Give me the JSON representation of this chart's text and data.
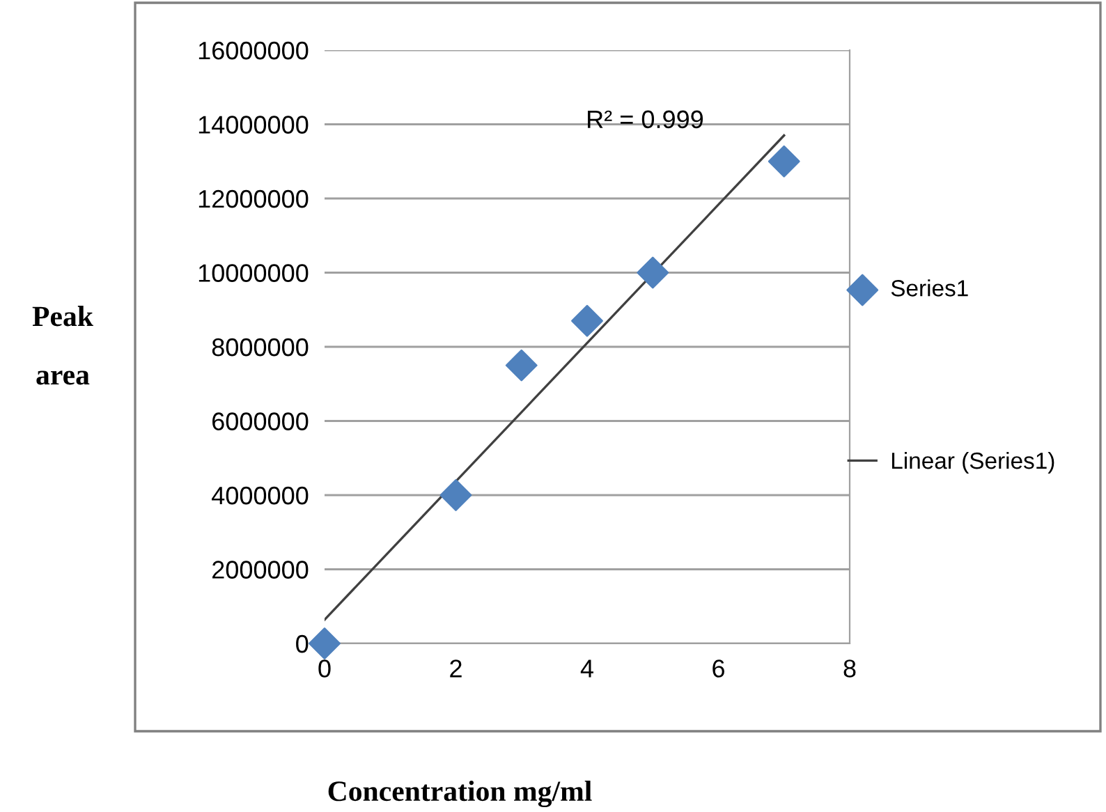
{
  "chart_data": {
    "type": "scatter",
    "xlabel": "Concentration mg/ml",
    "ylabel": "Peak\narea",
    "series": [
      {
        "name": "Series1",
        "color": "#4f81bd",
        "marker": "diamond",
        "x": [
          0,
          2,
          3,
          4,
          5,
          7
        ],
        "values": [
          0,
          4000000,
          7500000,
          8700000,
          10000000,
          13000000
        ]
      },
      {
        "name": "Linear (Series1)",
        "type": "line",
        "color": "#404040",
        "marker": "none",
        "x": [
          0,
          7
        ],
        "values": [
          640000,
          13700000
        ]
      }
    ],
    "annotations": [
      "R² = 0.999"
    ],
    "xlim": [
      0,
      8
    ],
    "xticks": [
      0,
      2,
      4,
      6,
      8
    ],
    "ylim": [
      0,
      16000000
    ],
    "yticks": [
      0,
      2000000,
      4000000,
      6000000,
      8000000,
      10000000,
      12000000,
      14000000,
      16000000
    ],
    "grid": "y",
    "legend": "right"
  }
}
